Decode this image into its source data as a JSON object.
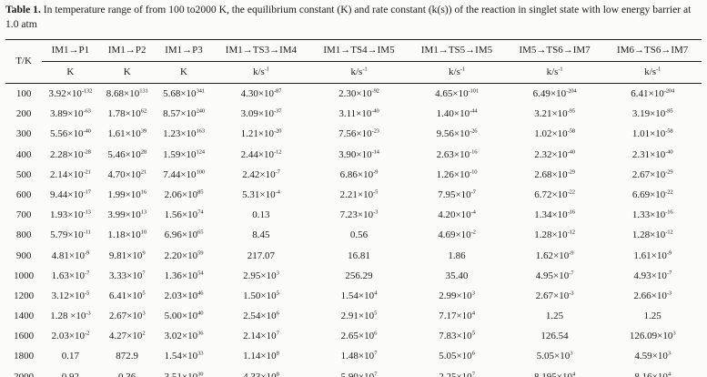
{
  "caption": {
    "label": "Table 1.",
    "text": " In temperature range of from 100 to2000 K, the equilibrium constant (K) and rate constant (k(s)) of the reaction in singlet state with low energy barrier at 1.0 atm"
  },
  "table": {
    "row_header_label": "T/K",
    "columns": [
      {
        "header": "IM1→P1",
        "unit": "K"
      },
      {
        "header": "IM1→P2",
        "unit": "K"
      },
      {
        "header": "IM1→P3",
        "unit": "K"
      },
      {
        "header": "IM1→TS3→IM4",
        "unit": "k/s^-1"
      },
      {
        "header": "IM1→TS4→IM5",
        "unit": "k/s^-1"
      },
      {
        "header": "IM1→TS5→IM5",
        "unit": "k/s^-1"
      },
      {
        "header": "IM5→TS6→IM7",
        "unit": "k/s^-1"
      },
      {
        "header": "IM6→TS6→IM7",
        "unit": "k/s^-1"
      }
    ],
    "rows": [
      {
        "t": "100",
        "values": [
          "3.92×10^-132",
          "8.68×10^131",
          "5.68×10^341",
          "4.30×10^-87",
          "2.30×10^-92",
          "4.65×10^-101",
          "6.49×10^-204",
          "6.41×10^-204"
        ]
      },
      {
        "t": "200",
        "values": [
          "3.89×10^-63",
          "1.78×10^62",
          "8.57×10^240",
          "3.09×10^-37",
          "3.11×10^-40",
          "1.40×10^-44",
          "3.21×10^-95",
          "3.19×10^-95"
        ]
      },
      {
        "t": "300",
        "values": [
          "5.56×10^-40",
          "1.61×10^39",
          "1.23×10^163",
          "1.21×10^-20",
          "7.56×10^-23",
          "9.56×10^-26",
          "1.02×10^-58",
          "1.01×10^-58"
        ]
      },
      {
        "t": "400",
        "values": [
          "2.28×10^-28",
          "5.46×10^28",
          "1.59×10^124",
          "2.44×10^-12",
          "3.90×10^-14",
          "2.63×10^-16",
          "2.32×10^-40",
          "2.31×10^-40"
        ]
      },
      {
        "t": "500",
        "values": [
          "2.14×10^-21",
          "4.70×10^21",
          "7.44×10^100",
          "2.42×10^-7",
          "6.86×10^-9",
          "1.26×10^-10",
          "2.68×10^-29",
          "2.67×10^-29"
        ]
      },
      {
        "t": "600",
        "values": [
          "9.44×10^-17",
          "1.99×10^16",
          "2.06×10^85",
          "5.31×10^-4",
          "2.21×10^-5",
          "7.95×10^-7",
          "6.72×10^-22",
          "6.69×10^-22"
        ]
      },
      {
        "t": "700",
        "values": [
          "1.93×10^-13",
          "3.99×10^13",
          "1.56×10^74",
          "0.13",
          "7.23×10^-3",
          "4.20×10^-4",
          "1.34×10^-16",
          "1.33×10^-16"
        ]
      },
      {
        "t": "800",
        "values": [
          "5.79×10^-11",
          "1.18×10^10",
          "6.96×10^65",
          "8.45",
          "0.56",
          "4.69×10^-2",
          "1.28×10^-12",
          "1.28×10^-12"
        ]
      },
      {
        "t": "900",
        "values": [
          "4.81×10^-9",
          "9.81×10^9",
          "2.20×10^59",
          "217.07",
          "16.81",
          "1.86",
          "1.62×10^-9",
          "1.61×10^-9"
        ]
      },
      {
        "t": "1000",
        "values": [
          "1.63×10^-7",
          "3.33×10^7",
          "1.36×10^54",
          "2.95×10^3",
          "256.29",
          "35.40",
          "4.95×10^-7",
          "4.93×10^-7"
        ]
      },
      {
        "t": "1200",
        "values": [
          "3.12×10^-5",
          "6.41×10^5",
          "2.03×10^46",
          "1.50×10^5",
          "1.54×10^4",
          "2.99×10^3",
          "2.67×10^-3",
          "2.66×10^-3"
        ]
      },
      {
        "t": "1400",
        "values": [
          "1.28 ×10^-3",
          "2.67×10^3",
          "5.00×10^40",
          "2.54×10^6",
          "2.91×10^5",
          "7.17×10^4",
          "1.25",
          "1.25"
        ]
      },
      {
        "t": "1600",
        "values": [
          "2.03×10^-2",
          "4.27×10^2",
          "3.02×10^36",
          "2.14×10^7",
          "2.65×10^6",
          "7.83×10^5",
          "126.54",
          "126.09×10^3"
        ]
      },
      {
        "t": "1800",
        "values": [
          "0.17",
          "872.9",
          "1.54×10^33",
          "1.14×10^8",
          "1.48×10^7",
          "5.05×10^6",
          "5.05×10^3",
          "4.59×10^3"
        ]
      },
      {
        "t": "2000",
        "values": [
          "0.92",
          "0.36",
          "3.51×10^30",
          "4.33×10^8",
          "5.90×10^7",
          "2.25×10^7",
          "8.195×10^4",
          "8.16×10^4"
        ]
      }
    ]
  },
  "colors": {
    "background": "#fbfbfa",
    "text": "#1b1b1b",
    "rule": "#1c1c1c"
  }
}
